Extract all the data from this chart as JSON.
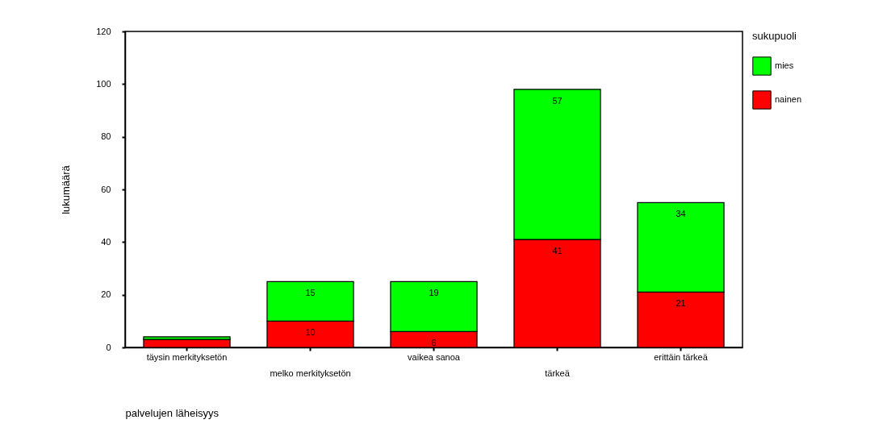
{
  "chart_data": {
    "type": "bar",
    "stacked": true,
    "xlabel": "palvelujen läheisyys",
    "ylabel": "lukumäärä",
    "legend_title": "sukupuoli",
    "legend": "right",
    "categories": [
      "täysin merkityksetön",
      "melko merkityksetön",
      "vaikea sanoa",
      "tärkeä",
      "erittäin tärkeä"
    ],
    "series": [
      {
        "name": "nainen",
        "color": "#ff0000",
        "values": [
          3,
          10,
          6,
          41,
          21
        ],
        "value_labels": [
          null,
          "10",
          "6",
          "41",
          "21"
        ]
      },
      {
        "name": "mies",
        "color": "#00ff00",
        "values": [
          1,
          15,
          19,
          57,
          34
        ],
        "value_labels": [
          null,
          "15",
          "19",
          "57",
          "34"
        ]
      }
    ],
    "ylim": [
      0,
      120
    ],
    "yticks": [
      0,
      20,
      40,
      60,
      80,
      100,
      120
    ],
    "grid": false
  }
}
